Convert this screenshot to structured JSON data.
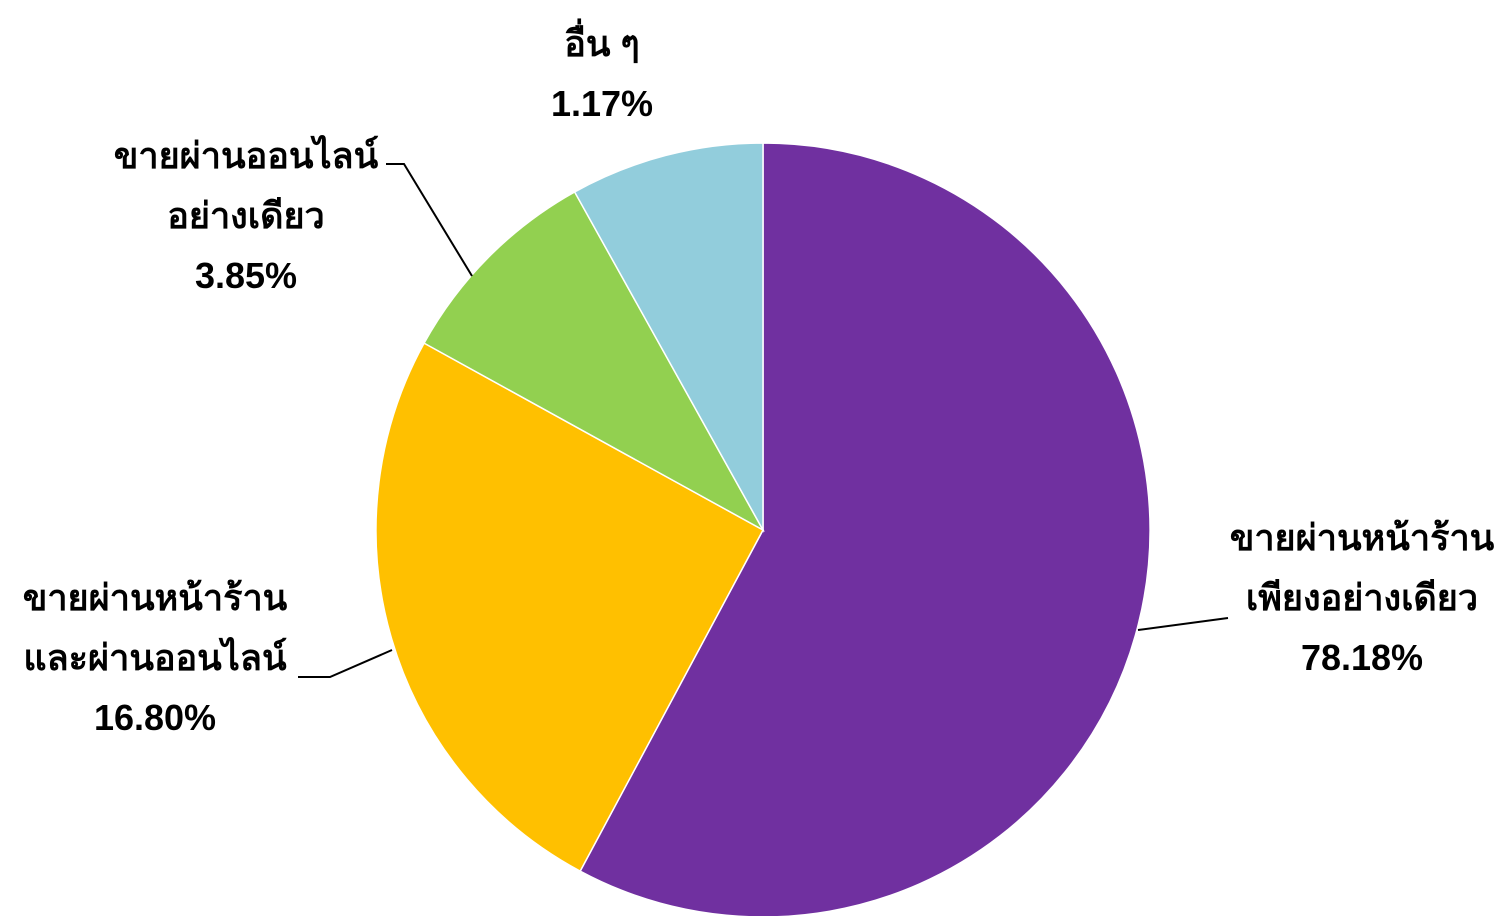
{
  "chart_data": {
    "type": "pie",
    "slices": [
      {
        "label_lines": [
          "ขายผ่านหน้าร้าน",
          "เพียงอย่างเดียว"
        ],
        "value": 78.18,
        "value_text": "78.18%",
        "color": "#7030A0"
      },
      {
        "label_lines": [
          "ขายผ่านหน้าร้าน",
          "และผ่านออนไลน์"
        ],
        "value": 16.8,
        "value_text": "16.80%",
        "color": "#FFC000"
      },
      {
        "label_lines": [
          "ขายผ่านออนไลน์",
          "อย่างเดียว"
        ],
        "value": 3.85,
        "value_text": "3.85%",
        "color": "#92D050"
      },
      {
        "label_lines": [
          "อื่น ๆ"
        ],
        "value": 1.17,
        "value_text": "1.17%",
        "color": "#92CDDC"
      }
    ],
    "start_angle": "12 o'clock",
    "direction": "clockwise",
    "slice_border_color": "#FFFFFF",
    "leader_line_color": "#000000"
  }
}
